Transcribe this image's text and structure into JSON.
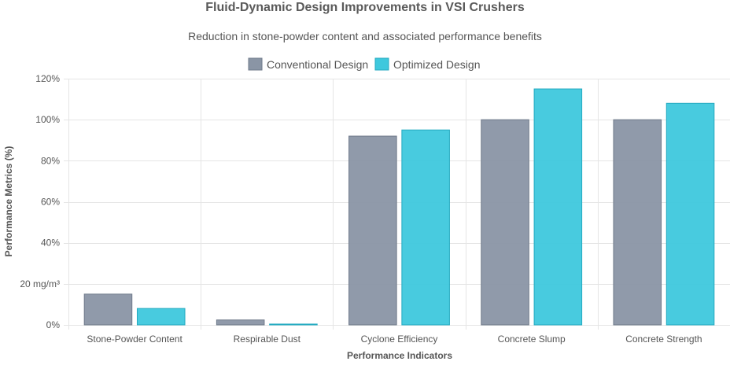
{
  "chart_data": {
    "type": "bar",
    "title": "Fluid-Dynamic Design Improvements in VSI Crushers",
    "subtitle": "Reduction in stone-powder content and associated performance benefits",
    "xlabel": "Performance Indicators",
    "ylabel": "Performance Metrics (%)",
    "categories": [
      "Stone-Powder Content",
      "Respirable Dust",
      "Cyclone Efficiency",
      "Concrete Slump",
      "Concrete Strength"
    ],
    "series": [
      {
        "name": "Conventional Design",
        "values": [
          15,
          2.4,
          92,
          100,
          100
        ],
        "color": "#8a95a5"
      },
      {
        "name": "Optimized Design",
        "values": [
          8,
          0.4,
          95,
          115,
          108
        ],
        "color": "#3ec8dd"
      }
    ],
    "ylim": [
      0,
      120
    ],
    "yticks": [
      {
        "value": 0,
        "label": "0%"
      },
      {
        "value": 20,
        "label": "20 mg/m³"
      },
      {
        "value": 40,
        "label": "40%"
      },
      {
        "value": 60,
        "label": "60%"
      },
      {
        "value": 80,
        "label": "80%"
      },
      {
        "value": 100,
        "label": "100%"
      },
      {
        "value": 120,
        "label": "120%"
      }
    ],
    "grid": true,
    "legend_position": "top"
  }
}
